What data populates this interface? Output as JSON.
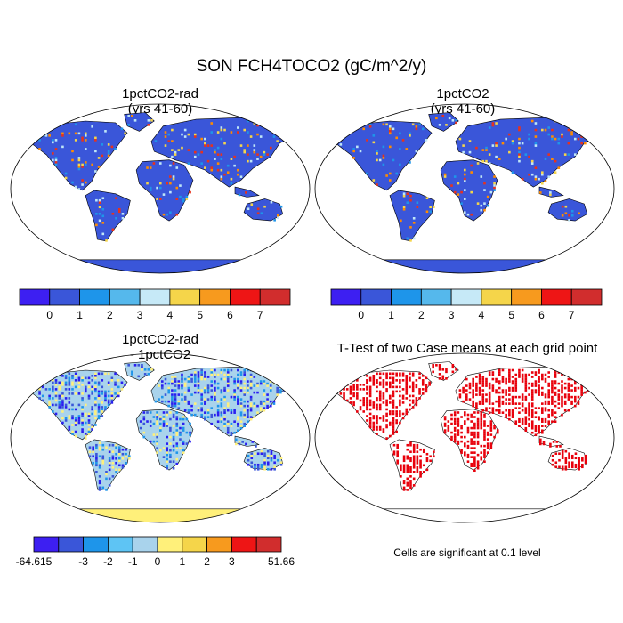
{
  "main_title": "SON FCH4TOCO2 (gC/m^2/y)",
  "panels": [
    {
      "id": "p1",
      "title_line1": "1pctCO2-rad",
      "title_line2": "(yrs 41-60)",
      "fill": "#3a56d9",
      "speckle": [
        "#f5d54a",
        "#e8321c",
        "#1e95ea",
        "#bfe6f7",
        "#ff8c00"
      ],
      "antarctica": "#3a56d9"
    },
    {
      "id": "p2",
      "title_line1": "1pctCO2",
      "title_line2": "(yrs 41-60)",
      "fill": "#3a56d9",
      "speckle": [
        "#f5d54a",
        "#e8321c",
        "#1e95ea",
        "#bfe6f7",
        "#ff8c00"
      ],
      "antarctica": "#3a56d9"
    },
    {
      "id": "p3",
      "title_line1": "1pctCO2-rad",
      "title_line2": "- 1pctCO2",
      "fill": "#a9d3ec",
      "speckle": [
        "#fff07a",
        "#3a56d9",
        "#1e95ea",
        "#2a1ef0"
      ],
      "antarctica": "#fff07a"
    },
    {
      "id": "p4",
      "title_line1": "T-Test of two Case means at each grid point",
      "title_line2": "",
      "fill": "#ffffff",
      "speckle": [
        "#e8000b"
      ],
      "antarctica": "#ffffff"
    }
  ],
  "colorbar_top": {
    "colors": [
      "#3d1ff2",
      "#3a56d9",
      "#1e95ea",
      "#55b8ec",
      "#c6e9f7",
      "#f5d54a",
      "#f79a1e",
      "#ee1515",
      "#d12d2d"
    ],
    "labels": [
      "0",
      "1",
      "2",
      "3",
      "4",
      "5",
      "6",
      "7"
    ]
  },
  "colorbar_diff": {
    "colors": [
      "#3d1ff2",
      "#3a56d9",
      "#1e95ea",
      "#5ec4f4",
      "#a9d3ec",
      "#fff07a",
      "#f5d54a",
      "#f79a1e",
      "#ee1515",
      "#d12d2d"
    ],
    "labels": [
      "-64.615",
      "-3",
      "-2",
      "-1",
      "0",
      "1",
      "2",
      "3",
      "51.66"
    ]
  },
  "significance_note": "Cells are significant at 0.1 level"
}
